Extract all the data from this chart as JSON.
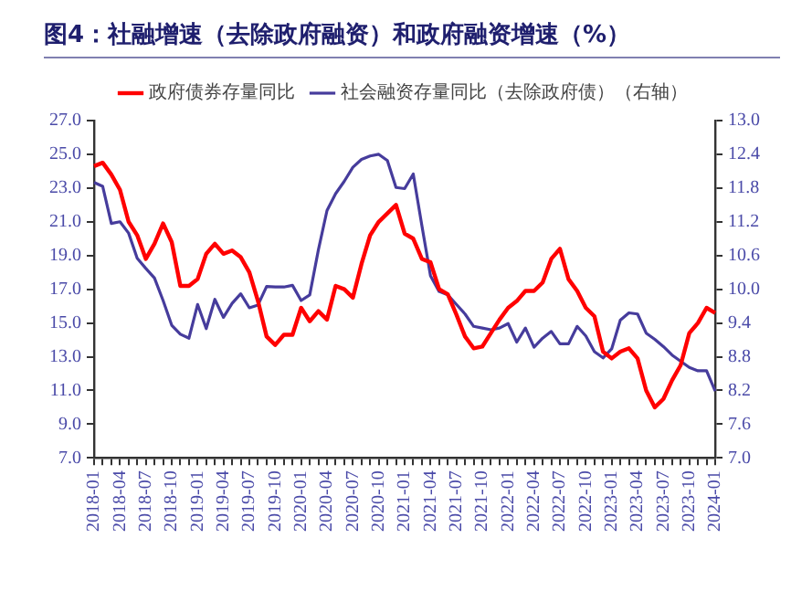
{
  "chart_data": {
    "type": "line",
    "title": "图4：社融增速（去除政府融资）和政府融资增速（%）",
    "categories": [
      "2018-01",
      null,
      null,
      "2018-04",
      null,
      null,
      "2018-07",
      null,
      null,
      "2018-10",
      null,
      null,
      "2019-01",
      null,
      null,
      "2019-04",
      null,
      null,
      "2019-07",
      null,
      null,
      "2019-10",
      null,
      null,
      "2020-01",
      null,
      null,
      "2020-04",
      null,
      null,
      "2020-07",
      null,
      null,
      "2020-10",
      null,
      null,
      "2021-01",
      null,
      null,
      "2021-04",
      null,
      null,
      "2021-07",
      null,
      null,
      "2021-10",
      null,
      null,
      "2022-01",
      null,
      null,
      "2022-04",
      null,
      null,
      "2022-07",
      null,
      null,
      "2022-10",
      null,
      null,
      "2023-01",
      null,
      null,
      "2023-04",
      null,
      null,
      "2023-07",
      null,
      null,
      "2023-10",
      null,
      null,
      "2024-01"
    ],
    "series": [
      {
        "name": "政府债券存量同比",
        "color": "#ff0000",
        "values": [
          24.3,
          24.5,
          23.8,
          22.9,
          21.0,
          20.2,
          18.8,
          19.7,
          20.9,
          19.8,
          17.2,
          17.2,
          17.6,
          19.1,
          19.7,
          19.1,
          19.3,
          18.9,
          18.0,
          16.3,
          14.2,
          13.7,
          14.3,
          14.3,
          15.9,
          15.1,
          15.7,
          15.2,
          17.2,
          17.0,
          16.5,
          18.5,
          20.2,
          21.0,
          21.5,
          22.0,
          20.3,
          20.0,
          18.8,
          18.6,
          17.0,
          16.7,
          15.5,
          14.2,
          13.5,
          13.6,
          14.4,
          15.2,
          15.9,
          16.3,
          16.9,
          16.9,
          17.4,
          18.8,
          19.4,
          17.6,
          16.9,
          15.9,
          15.4,
          13.3,
          12.9,
          13.3,
          13.5,
          12.9,
          11.0,
          10.0,
          10.5,
          11.6,
          12.5,
          14.4,
          15.0,
          15.9,
          15.6
        ]
      },
      {
        "name": "社会融资存量同比（去除政府债）（右轴）",
        "color": "#463c9c",
        "axis": "y2",
        "values": [
          11.9,
          11.83,
          11.17,
          11.2,
          11.0,
          10.55,
          10.37,
          10.2,
          9.8,
          9.36,
          9.2,
          9.13,
          9.73,
          9.3,
          9.82,
          9.5,
          9.75,
          9.92,
          9.67,
          9.72,
          10.05,
          10.04,
          10.04,
          10.07,
          9.8,
          9.9,
          10.7,
          11.4,
          11.7,
          11.92,
          12.17,
          12.31,
          12.37,
          12.4,
          12.29,
          11.81,
          11.79,
          12.05,
          11.13,
          10.24,
          9.96,
          9.9,
          9.73,
          9.56,
          9.34,
          9.31,
          9.28,
          9.31,
          9.39,
          9.06,
          9.31,
          8.97,
          9.13,
          9.25,
          9.03,
          9.03,
          9.34,
          9.17,
          8.89,
          8.78,
          8.94,
          9.45,
          9.58,
          9.56,
          9.22,
          9.11,
          8.98,
          8.83,
          8.72,
          8.61,
          8.55,
          8.55,
          8.19
        ]
      }
    ],
    "ylim": [
      7,
      27
    ],
    "yticks": [
      {
        "value": 7,
        "label": "7.0"
      },
      {
        "value": 9,
        "label": "9.0"
      },
      {
        "value": 11,
        "label": "11.0"
      },
      {
        "value": 13,
        "label": "13.0"
      },
      {
        "value": 15,
        "label": "15.0"
      },
      {
        "value": 17,
        "label": "17.0"
      },
      {
        "value": 19,
        "label": "19.0"
      },
      {
        "value": 21,
        "label": "21.0"
      },
      {
        "value": 23,
        "label": "23.0"
      },
      {
        "value": 25,
        "label": "25.0"
      },
      {
        "value": 27,
        "label": "27.0"
      }
    ],
    "y2lim": [
      7,
      13
    ],
    "y2ticks": [
      {
        "value": 7,
        "label": "7.0"
      },
      {
        "value": 7.6,
        "label": "7.6"
      },
      {
        "value": 8.2,
        "label": "8.2"
      },
      {
        "value": 8.8,
        "label": "8.8"
      },
      {
        "value": 9.4,
        "label": "9.4"
      },
      {
        "value": 10,
        "label": "10.0"
      },
      {
        "value": 10.6,
        "label": "10.6"
      },
      {
        "value": 11.2,
        "label": "11.2"
      },
      {
        "value": 11.8,
        "label": "11.8"
      },
      {
        "value": 12.4,
        "label": "12.4"
      },
      {
        "value": 13,
        "label": "13.0"
      }
    ],
    "legend": "top",
    "marker": "none",
    "line_style": "solid"
  }
}
